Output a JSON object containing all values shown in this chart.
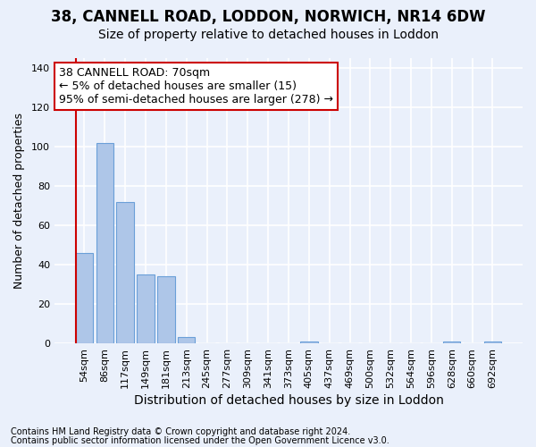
{
  "title_line1": "38, CANNELL ROAD, LODDON, NORWICH, NR14 6DW",
  "title_line2": "Size of property relative to detached houses in Loddon",
  "xlabel": "Distribution of detached houses by size in Loddon",
  "ylabel": "Number of detached properties",
  "footnote1": "Contains HM Land Registry data © Crown copyright and database right 2024.",
  "footnote2": "Contains public sector information licensed under the Open Government Licence v3.0.",
  "categories": [
    "54sqm",
    "86sqm",
    "117sqm",
    "149sqm",
    "181sqm",
    "213sqm",
    "245sqm",
    "277sqm",
    "309sqm",
    "341sqm",
    "373sqm",
    "405sqm",
    "437sqm",
    "469sqm",
    "500sqm",
    "532sqm",
    "564sqm",
    "596sqm",
    "628sqm",
    "660sqm",
    "692sqm"
  ],
  "values": [
    46,
    102,
    72,
    35,
    34,
    3,
    0,
    0,
    0,
    0,
    0,
    1,
    0,
    0,
    0,
    0,
    0,
    0,
    1,
    0,
    1
  ],
  "bar_color": "#aec6e8",
  "bar_edge_color": "#6a9fd8",
  "highlight_bar_edge_color": "#cc0000",
  "vline_color": "#cc0000",
  "annotation_text": "38 CANNELL ROAD: 70sqm\n← 5% of detached houses are smaller (15)\n95% of semi-detached houses are larger (278) →",
  "annotation_box_color": "#ffffff",
  "annotation_box_edge_color": "#cc0000",
  "ylim": [
    0,
    145
  ],
  "yticks": [
    0,
    20,
    40,
    60,
    80,
    100,
    120,
    140
  ],
  "background_color": "#eaf0fb",
  "grid_color": "#ffffff",
  "title1_fontsize": 12,
  "title2_fontsize": 10,
  "xlabel_fontsize": 10,
  "ylabel_fontsize": 9,
  "tick_fontsize": 8,
  "annotation_fontsize": 9,
  "footnote_fontsize": 7
}
